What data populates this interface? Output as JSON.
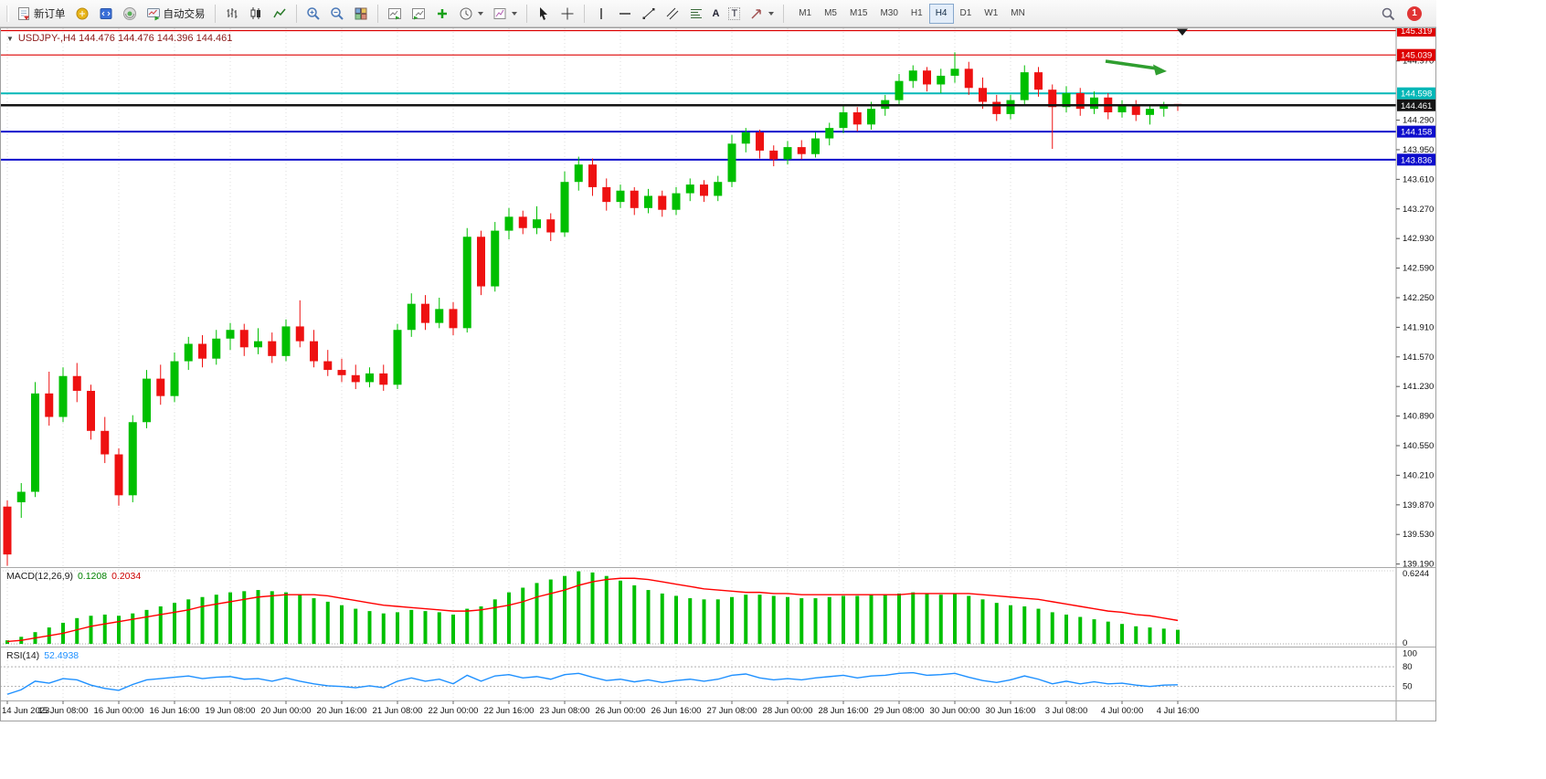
{
  "toolbar": {
    "new_order": "新订单",
    "auto_trading": "自动交易",
    "timeframes": [
      "M1",
      "M5",
      "M15",
      "M30",
      "H1",
      "H4",
      "D1",
      "W1",
      "MN"
    ],
    "active_timeframe": "H4",
    "notification_count": "1"
  },
  "icons": {
    "collapse": "▼",
    "text_tool": "A",
    "label_tool": "T"
  },
  "chart": {
    "title": "USDJPY-,H4  144.476 144.476 144.396 144.461"
  },
  "chart_data": {
    "type": "candlestick",
    "symbol": "USDJPY-",
    "timeframe": "H4",
    "current_bar": {
      "open": 144.476,
      "high": 144.476,
      "low": 144.396,
      "close": 144.461
    },
    "background": "#ffffff",
    "grid_color": "#dcdcdc",
    "up_color": "#00bf00",
    "down_color": "#ee1111",
    "y_axis": {
      "min": 139.165,
      "max": 145.345,
      "ticks": [
        "144.970",
        "144.290",
        "143.950",
        "143.610",
        "143.270",
        "142.930",
        "142.590",
        "142.250",
        "141.910",
        "141.570",
        "141.230",
        "140.890",
        "140.550",
        "140.210",
        "139.870",
        "139.530",
        "139.190"
      ]
    },
    "levels": [
      {
        "price": 145.319,
        "label": "145.319",
        "color": "#dd0000",
        "width": 1.2,
        "current": false
      },
      {
        "price": 145.039,
        "label": "145.039",
        "color": "#dd0000",
        "width": 1.2,
        "current": false
      },
      {
        "price": 144.598,
        "label": "144.598",
        "color": "#00b7b7",
        "width": 2,
        "current": false
      },
      {
        "price": 144.461,
        "label": "144.461",
        "color": "#141414",
        "width": 2.5,
        "current": true
      },
      {
        "price": 144.158,
        "label": "144.158",
        "color": "#0d0dcc",
        "width": 2,
        "current": false
      },
      {
        "price": 143.836,
        "label": "143.836",
        "color": "#0d0dcc",
        "width": 2,
        "current": false
      }
    ],
    "annotation_arrow": {
      "color": "#2f9e2f"
    },
    "candles": [
      [
        139.85,
        139.92,
        139.17,
        139.3
      ],
      [
        139.9,
        140.12,
        139.72,
        140.02
      ],
      [
        140.02,
        141.28,
        139.96,
        141.15
      ],
      [
        141.15,
        141.4,
        140.78,
        140.88
      ],
      [
        140.88,
        141.45,
        140.82,
        141.35
      ],
      [
        141.35,
        141.5,
        141.05,
        141.18
      ],
      [
        141.18,
        141.25,
        140.62,
        140.72
      ],
      [
        140.72,
        140.88,
        140.35,
        140.45
      ],
      [
        140.45,
        140.52,
        139.86,
        139.98
      ],
      [
        139.98,
        140.9,
        139.9,
        140.82
      ],
      [
        140.82,
        141.42,
        140.75,
        141.32
      ],
      [
        141.32,
        141.48,
        141.02,
        141.12
      ],
      [
        141.12,
        141.62,
        141.05,
        141.52
      ],
      [
        141.52,
        141.8,
        141.42,
        141.72
      ],
      [
        141.72,
        141.82,
        141.45,
        141.55
      ],
      [
        141.55,
        141.88,
        141.48,
        141.78
      ],
      [
        141.78,
        141.96,
        141.65,
        141.88
      ],
      [
        141.88,
        141.95,
        141.58,
        141.68
      ],
      [
        141.68,
        141.9,
        141.6,
        141.75
      ],
      [
        141.75,
        141.85,
        141.5,
        141.58
      ],
      [
        141.58,
        142.0,
        141.52,
        141.92
      ],
      [
        141.92,
        142.22,
        141.68,
        141.75
      ],
      [
        141.75,
        141.88,
        141.45,
        141.52
      ],
      [
        141.52,
        141.65,
        141.35,
        141.42
      ],
      [
        141.42,
        141.55,
        141.28,
        141.36
      ],
      [
        141.36,
        141.48,
        141.2,
        141.28
      ],
      [
        141.28,
        141.45,
        141.22,
        141.38
      ],
      [
        141.38,
        141.48,
        141.18,
        141.25
      ],
      [
        141.25,
        141.95,
        141.2,
        141.88
      ],
      [
        141.88,
        142.3,
        141.8,
        142.18
      ],
      [
        142.18,
        142.28,
        141.88,
        141.96
      ],
      [
        141.96,
        142.25,
        141.9,
        142.12
      ],
      [
        142.12,
        142.2,
        141.82,
        141.9
      ],
      [
        141.9,
        143.05,
        141.85,
        142.95
      ],
      [
        142.95,
        143.02,
        142.28,
        142.38
      ],
      [
        142.38,
        143.12,
        142.32,
        143.02
      ],
      [
        143.02,
        143.28,
        142.92,
        143.18
      ],
      [
        143.18,
        143.25,
        142.98,
        143.05
      ],
      [
        143.05,
        143.3,
        142.98,
        143.15
      ],
      [
        143.15,
        143.22,
        142.9,
        143.0
      ],
      [
        143.0,
        143.7,
        142.95,
        143.58
      ],
      [
        143.58,
        143.87,
        143.48,
        143.78
      ],
      [
        143.78,
        143.85,
        143.42,
        143.52
      ],
      [
        143.52,
        143.62,
        143.25,
        143.35
      ],
      [
        143.35,
        143.55,
        143.28,
        143.48
      ],
      [
        143.48,
        143.52,
        143.2,
        143.28
      ],
      [
        143.28,
        143.5,
        143.22,
        143.42
      ],
      [
        143.42,
        143.48,
        143.18,
        143.26
      ],
      [
        143.26,
        143.52,
        143.2,
        143.45
      ],
      [
        143.45,
        143.62,
        143.36,
        143.55
      ],
      [
        143.55,
        143.6,
        143.35,
        143.42
      ],
      [
        143.42,
        143.65,
        143.36,
        143.58
      ],
      [
        143.58,
        144.12,
        143.52,
        144.02
      ],
      [
        144.02,
        144.2,
        143.92,
        144.15
      ],
      [
        144.15,
        144.18,
        143.85,
        143.94
      ],
      [
        143.94,
        144.0,
        143.76,
        143.84
      ],
      [
        143.84,
        144.05,
        143.78,
        143.98
      ],
      [
        143.98,
        144.06,
        143.84,
        143.9
      ],
      [
        143.9,
        144.15,
        143.86,
        144.08
      ],
      [
        144.08,
        144.26,
        144.0,
        144.2
      ],
      [
        144.2,
        144.46,
        144.14,
        144.38
      ],
      [
        144.38,
        144.44,
        144.16,
        144.24
      ],
      [
        144.24,
        144.5,
        144.18,
        144.42
      ],
      [
        144.42,
        144.58,
        144.34,
        144.52
      ],
      [
        144.52,
        144.82,
        144.46,
        144.74
      ],
      [
        144.74,
        144.92,
        144.66,
        144.86
      ],
      [
        144.86,
        144.9,
        144.62,
        144.7
      ],
      [
        144.7,
        144.88,
        144.6,
        144.8
      ],
      [
        144.8,
        145.07,
        144.72,
        144.88
      ],
      [
        144.88,
        144.96,
        144.58,
        144.66
      ],
      [
        144.66,
        144.78,
        144.42,
        144.5
      ],
      [
        144.5,
        144.58,
        144.28,
        144.36
      ],
      [
        144.36,
        144.58,
        144.3,
        144.52
      ],
      [
        144.52,
        144.92,
        144.46,
        144.84
      ],
      [
        144.84,
        144.9,
        144.56,
        144.64
      ],
      [
        144.64,
        144.7,
        143.96,
        144.44
      ],
      [
        144.44,
        144.68,
        144.38,
        144.6
      ],
      [
        144.6,
        144.66,
        144.34,
        144.42
      ],
      [
        144.42,
        144.62,
        144.36,
        144.55
      ],
      [
        144.55,
        144.6,
        144.3,
        144.38
      ],
      [
        144.38,
        144.52,
        144.32,
        144.47
      ],
      [
        144.47,
        144.52,
        144.28,
        144.35
      ],
      [
        144.35,
        144.46,
        144.24,
        144.42
      ],
      [
        144.42,
        144.5,
        144.33,
        144.45
      ],
      [
        144.476,
        144.476,
        144.396,
        144.461
      ]
    ],
    "time_labels": [
      {
        "i": 0,
        "t": "14 Jun 2023"
      },
      {
        "i": 4,
        "t": "15 Jun 08:00"
      },
      {
        "i": 8,
        "t": "16 Jun 00:00"
      },
      {
        "i": 12,
        "t": "16 Jun 16:00"
      },
      {
        "i": 16,
        "t": "19 Jun 08:00"
      },
      {
        "i": 20,
        "t": "20 Jun 00:00"
      },
      {
        "i": 24,
        "t": "20 Jun 16:00"
      },
      {
        "i": 28,
        "t": "21 Jun 08:00"
      },
      {
        "i": 32,
        "t": "22 Jun 00:00"
      },
      {
        "i": 36,
        "t": "22 Jun 16:00"
      },
      {
        "i": 40,
        "t": "23 Jun 08:00"
      },
      {
        "i": 44,
        "t": "26 Jun 00:00"
      },
      {
        "i": 48,
        "t": "26 Jun 16:00"
      },
      {
        "i": 52,
        "t": "27 Jun 08:00"
      },
      {
        "i": 56,
        "t": "28 Jun 00:00"
      },
      {
        "i": 60,
        "t": "28 Jun 16:00"
      },
      {
        "i": 64,
        "t": "29 Jun 08:00"
      },
      {
        "i": 68,
        "t": "30 Jun 00:00"
      },
      {
        "i": 72,
        "t": "30 Jun 16:00"
      },
      {
        "i": 76,
        "t": "3 Jul 08:00"
      },
      {
        "i": 80,
        "t": "4 Jul 00:00"
      },
      {
        "i": 84,
        "t": "4 Jul 16:00"
      }
    ],
    "macd": {
      "label": "MACD(12,26,9)",
      "main_value": "0.1208",
      "signal_value": "0.2034",
      "axis_max": "0.6244",
      "axis_min": "0",
      "max": 0.6244,
      "hist_color": "#00c000",
      "signal_color": "#ff0000",
      "histogram": [
        0.03,
        0.06,
        0.1,
        0.14,
        0.18,
        0.22,
        0.24,
        0.25,
        0.24,
        0.26,
        0.29,
        0.32,
        0.35,
        0.38,
        0.4,
        0.42,
        0.44,
        0.45,
        0.46,
        0.45,
        0.44,
        0.42,
        0.39,
        0.36,
        0.33,
        0.3,
        0.28,
        0.26,
        0.27,
        0.29,
        0.28,
        0.27,
        0.25,
        0.3,
        0.32,
        0.38,
        0.44,
        0.48,
        0.52,
        0.55,
        0.58,
        0.62,
        0.61,
        0.58,
        0.54,
        0.5,
        0.46,
        0.43,
        0.41,
        0.39,
        0.38,
        0.38,
        0.4,
        0.42,
        0.42,
        0.41,
        0.4,
        0.39,
        0.39,
        0.4,
        0.41,
        0.41,
        0.42,
        0.42,
        0.43,
        0.44,
        0.43,
        0.42,
        0.43,
        0.41,
        0.38,
        0.35,
        0.33,
        0.32,
        0.3,
        0.27,
        0.25,
        0.23,
        0.21,
        0.19,
        0.17,
        0.15,
        0.14,
        0.13,
        0.12
      ],
      "signal": [
        0.02,
        0.03,
        0.05,
        0.07,
        0.09,
        0.12,
        0.15,
        0.17,
        0.19,
        0.21,
        0.23,
        0.25,
        0.27,
        0.29,
        0.32,
        0.34,
        0.36,
        0.38,
        0.4,
        0.41,
        0.42,
        0.42,
        0.42,
        0.41,
        0.39,
        0.37,
        0.35,
        0.33,
        0.32,
        0.31,
        0.3,
        0.29,
        0.28,
        0.28,
        0.29,
        0.31,
        0.33,
        0.36,
        0.4,
        0.43,
        0.46,
        0.5,
        0.53,
        0.55,
        0.56,
        0.56,
        0.55,
        0.53,
        0.51,
        0.49,
        0.47,
        0.46,
        0.45,
        0.44,
        0.44,
        0.43,
        0.43,
        0.42,
        0.42,
        0.42,
        0.42,
        0.42,
        0.42,
        0.42,
        0.42,
        0.43,
        0.43,
        0.43,
        0.43,
        0.43,
        0.42,
        0.41,
        0.4,
        0.39,
        0.38,
        0.36,
        0.34,
        0.32,
        0.3,
        0.28,
        0.27,
        0.25,
        0.24,
        0.22,
        0.2
      ]
    },
    "rsi": {
      "label": "RSI(14)",
      "value": "52.4938",
      "color": "#1e90ff",
      "axis_labels": [
        {
          "v": 100,
          "t": "100"
        },
        {
          "v": 80,
          "t": "80"
        },
        {
          "v": 50,
          "t": "50"
        }
      ],
      "dashed_levels": [
        80,
        50
      ],
      "values": [
        38,
        45,
        58,
        55,
        62,
        60,
        52,
        47,
        44,
        53,
        60,
        62,
        64,
        66,
        62,
        64,
        65,
        61,
        62,
        58,
        63,
        58,
        54,
        51,
        50,
        48,
        51,
        48,
        58,
        63,
        58,
        61,
        54,
        67,
        58,
        66,
        68,
        63,
        65,
        61,
        68,
        70,
        64,
        59,
        61,
        57,
        60,
        56,
        59,
        61,
        58,
        61,
        67,
        69,
        63,
        60,
        62,
        60,
        63,
        65,
        67,
        63,
        66,
        67,
        70,
        71,
        67,
        68,
        70,
        64,
        59,
        56,
        60,
        66,
        61,
        54,
        58,
        54,
        57,
        54,
        55,
        52,
        50,
        52,
        52.49
      ]
    }
  }
}
